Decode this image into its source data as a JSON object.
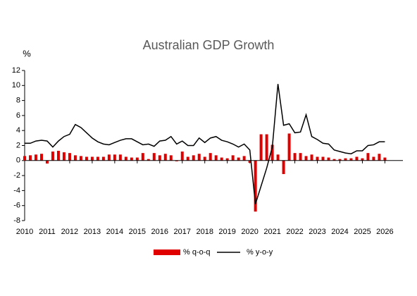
{
  "chart_data": {
    "type": "bar-line",
    "title": "Australian GDP Growth",
    "y_label": "%",
    "x": [
      2010,
      2010.25,
      2010.5,
      2010.75,
      2011,
      2011.25,
      2011.5,
      2011.75,
      2012,
      2012.25,
      2012.5,
      2012.75,
      2013,
      2013.25,
      2013.5,
      2013.75,
      2014,
      2014.25,
      2014.5,
      2014.75,
      2015,
      2015.25,
      2015.5,
      2015.75,
      2016,
      2016.25,
      2016.5,
      2016.75,
      2017,
      2017.25,
      2017.5,
      2017.75,
      2018,
      2018.25,
      2018.5,
      2018.75,
      2019,
      2019.25,
      2019.5,
      2019.75,
      2020,
      2020.25,
      2020.5,
      2020.75,
      2021,
      2021.25,
      2021.5,
      2021.75,
      2022,
      2022.25,
      2022.5,
      2022.75,
      2023,
      2023.25,
      2023.5,
      2023.75,
      2024,
      2024.25,
      2024.5,
      2024.75,
      2025,
      2025.25,
      2025.5,
      2025.75,
      2026
    ],
    "series": [
      {
        "name": "% q-o-q",
        "kind": "bar",
        "color": "#e00000",
        "values": [
          0.6,
          0.7,
          0.8,
          0.9,
          -0.4,
          1.2,
          1.3,
          1.1,
          1.0,
          0.7,
          0.6,
          0.5,
          0.5,
          0.5,
          0.5,
          0.8,
          0.8,
          0.8,
          0.5,
          0.4,
          0.4,
          1.0,
          0.2,
          1.0,
          0.7,
          0.9,
          0.7,
          -0.1,
          1.2,
          0.5,
          0.7,
          0.9,
          0.5,
          1.0,
          0.7,
          0.4,
          0.3,
          0.7,
          0.4,
          0.6,
          -0.3,
          -6.8,
          3.5,
          3.5,
          2.1,
          0.8,
          -1.8,
          3.6,
          1.0,
          1.0,
          0.6,
          0.8,
          0.5,
          0.5,
          0.4,
          0.2,
          0.2,
          0.3,
          0.3,
          0.5,
          0.3,
          1.0,
          0.5,
          0.9,
          0.4
        ]
      },
      {
        "name": "% y-o-y",
        "kind": "line",
        "color": "#000000",
        "values": [
          2.3,
          2.3,
          2.6,
          2.7,
          2.6,
          1.8,
          2.6,
          3.2,
          3.5,
          4.8,
          4.4,
          3.7,
          3.0,
          2.5,
          2.2,
          2.1,
          2.4,
          2.7,
          2.9,
          2.9,
          2.5,
          2.1,
          2.2,
          1.9,
          2.6,
          2.7,
          3.2,
          2.2,
          2.6,
          2.0,
          2.0,
          3.0,
          2.4,
          3.0,
          3.2,
          2.7,
          2.5,
          2.2,
          1.8,
          2.2,
          1.4,
          -5.8,
          -3.4,
          -1.0,
          1.8,
          10.2,
          4.7,
          4.9,
          3.7,
          3.8,
          6.1,
          3.2,
          2.8,
          2.3,
          2.2,
          1.4,
          1.2,
          1.0,
          0.9,
          1.3,
          1.3,
          2.0,
          2.1,
          2.5,
          2.5
        ]
      }
    ],
    "xlim": [
      2010,
      2026.8
    ],
    "xticks": [
      2010,
      2011,
      2012,
      2013,
      2014,
      2015,
      2016,
      2017,
      2018,
      2019,
      2020,
      2021,
      2022,
      2023,
      2024,
      2025,
      2026
    ],
    "ylim": [
      -8,
      12
    ],
    "yticks": [
      -8,
      -6,
      -4,
      -2,
      0,
      2,
      4,
      6,
      8,
      10,
      12
    ],
    "legend": "bottom"
  }
}
